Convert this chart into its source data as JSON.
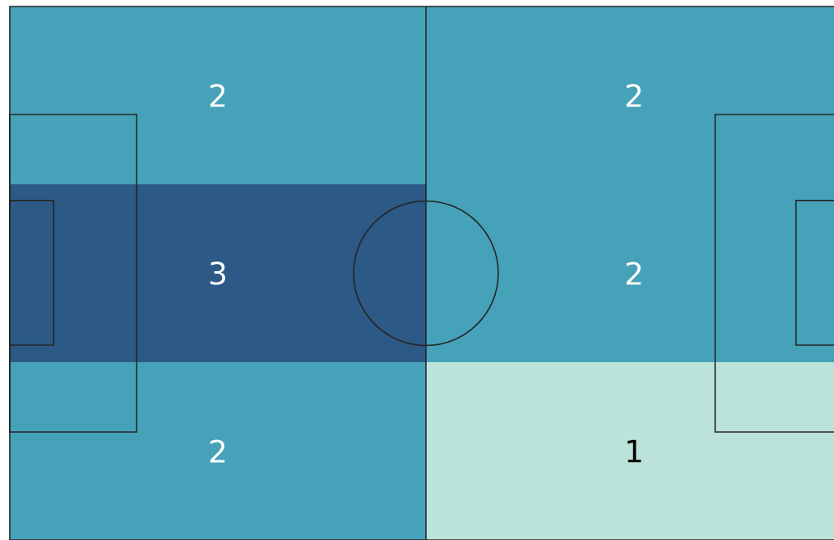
{
  "chart_data": {
    "type": "heatmap",
    "categories": [
      null,
      null
    ],
    "y_categories": [
      null,
      null,
      null
    ],
    "cells": [
      [
        2,
        2
      ],
      [
        3,
        2
      ],
      [
        2,
        1
      ]
    ],
    "data_labels": true
  }
}
